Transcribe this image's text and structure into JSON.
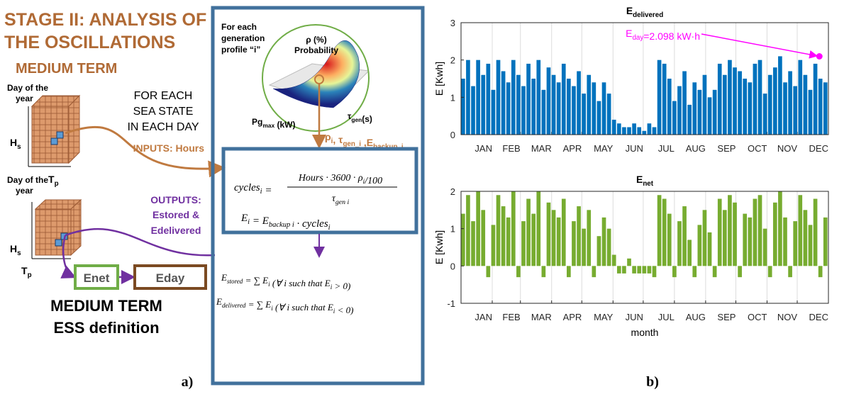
{
  "diagram": {
    "title": [
      "STAGE II: ANALYSIS OF",
      "THE OSCILLATIONS"
    ],
    "subtitle": "MEDIUM TERM",
    "cube_label": [
      "Day of the",
      "year"
    ],
    "axis_h": [
      {
        "t": "H",
        "s": "s"
      }
    ],
    "axis_t": [
      {
        "t": "T",
        "s": "p"
      }
    ],
    "sea_state": [
      "FOR EACH",
      "SEA STATE",
      "IN EACH DAY"
    ],
    "inputs": "INPUTS: Hours",
    "outputs": [
      "OUTPUTS:",
      "Estored &",
      "Edelivered"
    ],
    "enet": "Enet",
    "eday": "Eday",
    "footer": [
      "MEDIUM TERM",
      "ESS definition"
    ],
    "profile": [
      "For each",
      "generation",
      "profile “i”"
    ],
    "surface_z": [
      "ρ (%)",
      "Probability"
    ],
    "surface_x": [
      {
        "t": "Pg",
        "s": "max"
      },
      {
        "t": " (kW)"
      }
    ],
    "surface_y": [
      {
        "t": "τ",
        "s": "gen"
      },
      {
        "t": "(s)"
      }
    ],
    "params": [
      {
        "t": "ρ",
        "s": "i"
      },
      {
        "t": ", τ",
        "s": "gen_i"
      },
      {
        "t": " ,E",
        "s": "backup_i"
      }
    ],
    "cycles_lhs": [
      {
        "t": "cycles",
        "s": "i"
      },
      {
        "t": " ="
      }
    ],
    "cycles_num": [
      {
        "t": "Hours · 3600 · ρ",
        "s": "i"
      },
      {
        "t": "/100"
      }
    ],
    "cycles_den": [
      {
        "t": "τ",
        "s": "gen i"
      }
    ],
    "energy": [
      {
        "t": "E",
        "s": "i"
      },
      {
        "t": " = E",
        "s": "backup i"
      },
      {
        "t": " · cycles",
        "s": "i"
      }
    ],
    "stored": [
      {
        "t": "E",
        "s": "stored"
      },
      {
        "t": " = ∑ E",
        "s": "i"
      },
      {
        "t": "  (∀ i such that E",
        "s": "i"
      },
      {
        "t": " > 0)"
      }
    ],
    "delivered": [
      {
        "t": "E",
        "s": "delivered"
      },
      {
        "t": " = ∑ E",
        "s": "i"
      },
      {
        "t": "  (∀ i such that E",
        "s": "i"
      },
      {
        "t": " < 0)"
      }
    ]
  },
  "captions": [
    "a)",
    "b)"
  ],
  "chart_data": [
    {
      "type": "bar",
      "title": [
        {
          "t": "E",
          "s": "delivered"
        }
      ],
      "ylabel": "E [Kwh]",
      "x": [
        0,
        5,
        10,
        15,
        20,
        25,
        30,
        35,
        40,
        45,
        50,
        55,
        60,
        65,
        70,
        75,
        80,
        85,
        90,
        95,
        100,
        105,
        110,
        115,
        120,
        125,
        130,
        135,
        140,
        145,
        150,
        155,
        160,
        165,
        170,
        175,
        180,
        185,
        190,
        195,
        200,
        205,
        210,
        215,
        220,
        225,
        230,
        235,
        240,
        245,
        250,
        255,
        260,
        265,
        270,
        275,
        280,
        285,
        290,
        295,
        300,
        305,
        310,
        315,
        320,
        325,
        330,
        335,
        340,
        345,
        350,
        355,
        360
      ],
      "values": [
        1.5,
        2.0,
        1.3,
        2.0,
        1.6,
        1.9,
        1.2,
        2.0,
        1.7,
        1.4,
        2.0,
        1.6,
        1.3,
        1.9,
        1.5,
        2.0,
        1.2,
        1.8,
        1.6,
        1.4,
        1.9,
        1.5,
        1.3,
        1.7,
        1.1,
        1.6,
        1.4,
        0.9,
        1.4,
        1.1,
        0.4,
        0.3,
        0.2,
        0.2,
        0.3,
        0.2,
        0.1,
        0.3,
        0.2,
        2.0,
        1.9,
        1.5,
        0.9,
        1.3,
        1.7,
        0.8,
        1.4,
        1.2,
        1.6,
        1.0,
        1.2,
        1.9,
        1.6,
        2.0,
        1.8,
        1.7,
        1.5,
        1.4,
        1.9,
        2.0,
        1.1,
        1.6,
        1.8,
        2.1,
        1.4,
        1.7,
        1.3,
        2.0,
        1.6,
        1.2,
        1.9,
        1.5,
        1.4
      ],
      "color": "#0072bd",
      "xlim": [
        0,
        365
      ],
      "xticks": [
        {
          "value": 31,
          "label": "JAN"
        },
        {
          "value": 59,
          "label": "FEB"
        },
        {
          "value": 90,
          "label": "MAR"
        },
        {
          "value": 120,
          "label": "APR"
        },
        {
          "value": 151,
          "label": "MAY"
        },
        {
          "value": 181,
          "label": "JUN"
        },
        {
          "value": 212,
          "label": "JUL"
        },
        {
          "value": 243,
          "label": "AUG"
        },
        {
          "value": 273,
          "label": "SEP"
        },
        {
          "value": 304,
          "label": "OCT"
        },
        {
          "value": 334,
          "label": "NOV"
        },
        {
          "value": 365,
          "label": "DEC"
        }
      ],
      "ylim": [
        0,
        3
      ],
      "yticks": [
        0,
        1,
        2,
        3
      ],
      "grid": "x",
      "annotation": {
        "text": [
          {
            "t": "E",
            "s": "day"
          },
          {
            "t": "=2.098 kW·h"
          }
        ],
        "x": 356,
        "y": 2.098,
        "color": "#ff00ff"
      }
    },
    {
      "type": "bar",
      "title": [
        {
          "t": "E",
          "s": "net"
        }
      ],
      "ylabel": "E [Kwh]",
      "xlabel": "month",
      "x": [
        0,
        5,
        10,
        15,
        20,
        25,
        30,
        35,
        40,
        45,
        50,
        55,
        60,
        65,
        70,
        75,
        80,
        85,
        90,
        95,
        100,
        105,
        110,
        115,
        120,
        125,
        130,
        135,
        140,
        145,
        150,
        155,
        160,
        165,
        170,
        175,
        180,
        185,
        190,
        195,
        200,
        205,
        210,
        215,
        220,
        225,
        230,
        235,
        240,
        245,
        250,
        255,
        260,
        265,
        270,
        275,
        280,
        285,
        290,
        295,
        300,
        305,
        310,
        315,
        320,
        325,
        330,
        335,
        340,
        345,
        350,
        355,
        360
      ],
      "values": [
        1.4,
        1.9,
        1.2,
        2.0,
        1.5,
        -0.3,
        1.1,
        1.9,
        1.6,
        1.3,
        2.0,
        -0.3,
        1.2,
        1.8,
        1.4,
        2.0,
        -0.3,
        1.7,
        1.5,
        1.3,
        1.8,
        -0.3,
        1.2,
        1.6,
        1.0,
        1.5,
        -0.3,
        0.8,
        1.3,
        1.0,
        0.3,
        -0.2,
        -0.2,
        0.2,
        -0.2,
        -0.2,
        -0.2,
        -0.2,
        -0.3,
        1.9,
        1.8,
        1.4,
        -0.3,
        1.2,
        1.6,
        0.7,
        -0.3,
        1.1,
        1.5,
        0.9,
        -0.3,
        1.8,
        1.5,
        1.9,
        1.7,
        -0.3,
        1.4,
        1.3,
        1.8,
        1.9,
        1.0,
        -0.3,
        1.7,
        2.0,
        1.3,
        -0.3,
        1.2,
        1.9,
        1.5,
        1.1,
        1.8,
        -0.3,
        1.3
      ],
      "color": "#77ac30",
      "xlim": [
        0,
        365
      ],
      "xticks": [
        {
          "value": 31,
          "label": "JAN"
        },
        {
          "value": 59,
          "label": "FEB"
        },
        {
          "value": 90,
          "label": "MAR"
        },
        {
          "value": 120,
          "label": "APR"
        },
        {
          "value": 151,
          "label": "MAY"
        },
        {
          "value": 181,
          "label": "JUN"
        },
        {
          "value": 212,
          "label": "JUL"
        },
        {
          "value": 243,
          "label": "AUG"
        },
        {
          "value": 273,
          "label": "SEP"
        },
        {
          "value": 304,
          "label": "OCT"
        },
        {
          "value": 334,
          "label": "NOV"
        },
        {
          "value": 365,
          "label": "DEC"
        }
      ],
      "ylim": [
        -1,
        2
      ],
      "yticks": [
        -1,
        0,
        1,
        2
      ],
      "grid": "x"
    }
  ]
}
